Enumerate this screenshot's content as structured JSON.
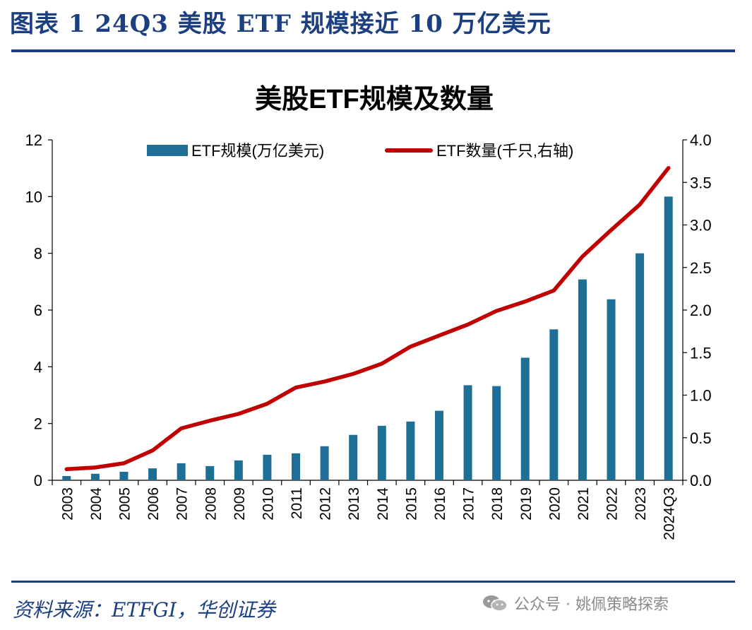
{
  "figure": {
    "title": "图表 1   24Q3 美股 ETF 规模接近 10 万亿美元",
    "source": "资料来源：ETFGI，华创证券",
    "watermark": "公众号 · 姚佩策略探索"
  },
  "colors": {
    "bar": "#1f6e96",
    "line": "#c00000",
    "accent": "#1c3f80"
  },
  "chart_data": {
    "type": "bar",
    "title": "美股ETF规模及数量",
    "categories": [
      "2003",
      "2004",
      "2005",
      "2006",
      "2007",
      "2008",
      "2009",
      "2010",
      "2011",
      "2012",
      "2013",
      "2014",
      "2015",
      "2016",
      "2017",
      "2018",
      "2019",
      "2020",
      "2021",
      "2022",
      "2023",
      "2024Q3"
    ],
    "series": [
      {
        "name": "ETF规模(万亿美元)",
        "type": "bar",
        "axis": "left",
        "values": [
          0.15,
          0.23,
          0.3,
          0.42,
          0.6,
          0.5,
          0.7,
          0.9,
          0.95,
          1.2,
          1.6,
          1.92,
          2.07,
          2.45,
          3.35,
          3.32,
          4.32,
          5.32,
          7.08,
          6.38,
          8.0,
          10.0
        ]
      },
      {
        "name": "ETF数量(千只,右轴)",
        "type": "line",
        "axis": "right",
        "values": [
          0.13,
          0.15,
          0.2,
          0.35,
          0.61,
          0.7,
          0.78,
          0.9,
          1.09,
          1.16,
          1.25,
          1.37,
          1.57,
          1.7,
          1.83,
          1.99,
          2.1,
          2.23,
          2.63,
          2.94,
          3.24,
          3.67
        ]
      }
    ],
    "yaxis_left": {
      "min": 0,
      "max": 12,
      "ticks": [
        "0",
        "2",
        "4",
        "6",
        "8",
        "10",
        "12"
      ]
    },
    "yaxis_right": {
      "min": 0,
      "max": 4,
      "ticks": [
        "0.0",
        "0.5",
        "1.0",
        "1.5",
        "2.0",
        "2.5",
        "3.0",
        "3.5",
        "4.0"
      ]
    },
    "legend": "top",
    "grid": false
  }
}
